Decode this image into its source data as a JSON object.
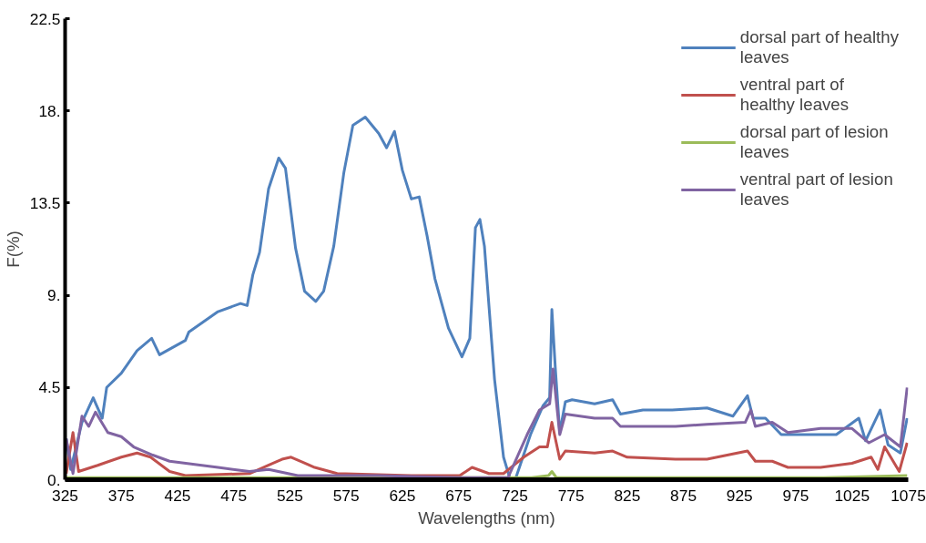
{
  "chart_data": {
    "type": "line",
    "xlabel": "Wavelengths (nm)",
    "ylabel": "F(%)",
    "xlim": [
      325,
      1075
    ],
    "xticks": [
      325,
      375,
      425,
      475,
      525,
      575,
      625,
      675,
      725,
      775,
      825,
      875,
      925,
      975,
      1025,
      1075
    ],
    "ylim": [
      0,
      22.5
    ],
    "yticks": [
      {
        "value": 0,
        "label": "0."
      },
      4.5,
      {
        "value": 9,
        "label": "9."
      },
      13.5,
      {
        "value": 18,
        "label": "18."
      },
      22.5
    ],
    "grid": false,
    "legend": "top right",
    "marker": "none",
    "line_style": "solid",
    "series": [
      {
        "name": "dorsal part of healthy leaves",
        "color": "#4f81bd",
        "x": [
          326,
          330,
          340,
          350,
          358,
          362,
          375,
          389,
          402,
          409,
          432,
          435,
          461,
          481,
          487,
          492,
          498,
          506,
          515,
          521,
          530,
          538,
          548,
          555,
          564,
          573,
          581,
          592,
          604,
          611,
          618,
          625,
          633,
          640,
          647,
          654,
          666,
          678,
          685,
          690,
          694,
          698,
          707,
          715,
          721,
          726,
          739,
          750,
          756,
          758,
          761,
          765,
          770,
          776,
          796,
          812,
          819,
          839,
          865,
          896,
          919,
          932,
          937,
          948,
          962,
          982,
          1011,
          1031,
          1037,
          1050,
          1057,
          1068,
          1074
        ],
        "values": [
          2.0,
          0.5,
          2.8,
          4.0,
          3.0,
          4.5,
          5.2,
          6.3,
          6.9,
          6.1,
          6.8,
          7.2,
          8.2,
          8.6,
          8.5,
          10.0,
          11.1,
          14.2,
          15.7,
          15.2,
          11.3,
          9.2,
          8.7,
          9.2,
          11.4,
          15.0,
          17.3,
          17.7,
          16.9,
          16.2,
          17.0,
          15.1,
          13.7,
          13.8,
          11.9,
          9.8,
          7.4,
          6.0,
          6.9,
          12.3,
          12.7,
          11.4,
          4.9,
          1.1,
          0.0,
          0.1,
          2.2,
          3.6,
          4.0,
          8.3,
          5.5,
          2.3,
          3.8,
          3.9,
          3.7,
          3.9,
          3.2,
          3.4,
          3.4,
          3.5,
          3.1,
          4.1,
          3.0,
          3.0,
          2.2,
          2.2,
          2.2,
          3.0,
          1.9,
          3.4,
          1.7,
          1.3,
          3.0
        ]
      },
      {
        "name": "ventral part of healthy leaves",
        "color": "#c0504d",
        "x": [
          326,
          332,
          337,
          354,
          375,
          389,
          401,
          418,
          432,
          489,
          518,
          526,
          547,
          567,
          633,
          676,
          687,
          702,
          715,
          733,
          747,
          754,
          758,
          765,
          770,
          796,
          812,
          825,
          868,
          896,
          932,
          939,
          954,
          968,
          997,
          1025,
          1042,
          1048,
          1054,
          1067,
          1074
        ],
        "values": [
          0.3,
          2.3,
          0.4,
          0.7,
          1.1,
          1.3,
          1.1,
          0.4,
          0.2,
          0.3,
          1.0,
          1.1,
          0.6,
          0.3,
          0.2,
          0.2,
          0.6,
          0.3,
          0.3,
          1.1,
          1.6,
          1.6,
          2.8,
          1.0,
          1.4,
          1.3,
          1.4,
          1.1,
          1.0,
          1.0,
          1.4,
          0.9,
          0.9,
          0.6,
          0.6,
          0.8,
          1.1,
          0.5,
          1.6,
          0.4,
          1.8
        ]
      },
      {
        "name": "dorsal part of lesion leaves",
        "color": "#9bbb59",
        "x": [
          326,
          335,
          500,
          700,
          740,
          755,
          758,
          762,
          800,
          900,
          1000,
          1074
        ],
        "values": [
          0.1,
          0.1,
          0.1,
          0.1,
          0.1,
          0.2,
          0.4,
          0.1,
          0.1,
          0.1,
          0.1,
          0.2
        ]
      },
      {
        "name": "ventral part of lesion leaves",
        "color": "#8064a2",
        "x": [
          326,
          332,
          340,
          346,
          352,
          363,
          375,
          386,
          403,
          418,
          461,
          489,
          506,
          532,
          604,
          676,
          715,
          719,
          736,
          747,
          756,
          759,
          765,
          770,
          796,
          812,
          819,
          868,
          896,
          930,
          935,
          939,
          954,
          968,
          997,
          1025,
          1040,
          1054,
          1068,
          1074
        ],
        "values": [
          2.0,
          0.3,
          3.1,
          2.6,
          3.3,
          2.3,
          2.1,
          1.6,
          1.2,
          0.9,
          0.6,
          0.4,
          0.5,
          0.2,
          0.2,
          0.1,
          0.1,
          0.1,
          2.2,
          3.4,
          3.7,
          5.4,
          2.2,
          3.2,
          3.0,
          3.0,
          2.6,
          2.6,
          2.7,
          2.8,
          3.4,
          2.6,
          2.8,
          2.3,
          2.5,
          2.5,
          1.8,
          2.2,
          1.6,
          4.5
        ]
      }
    ]
  }
}
